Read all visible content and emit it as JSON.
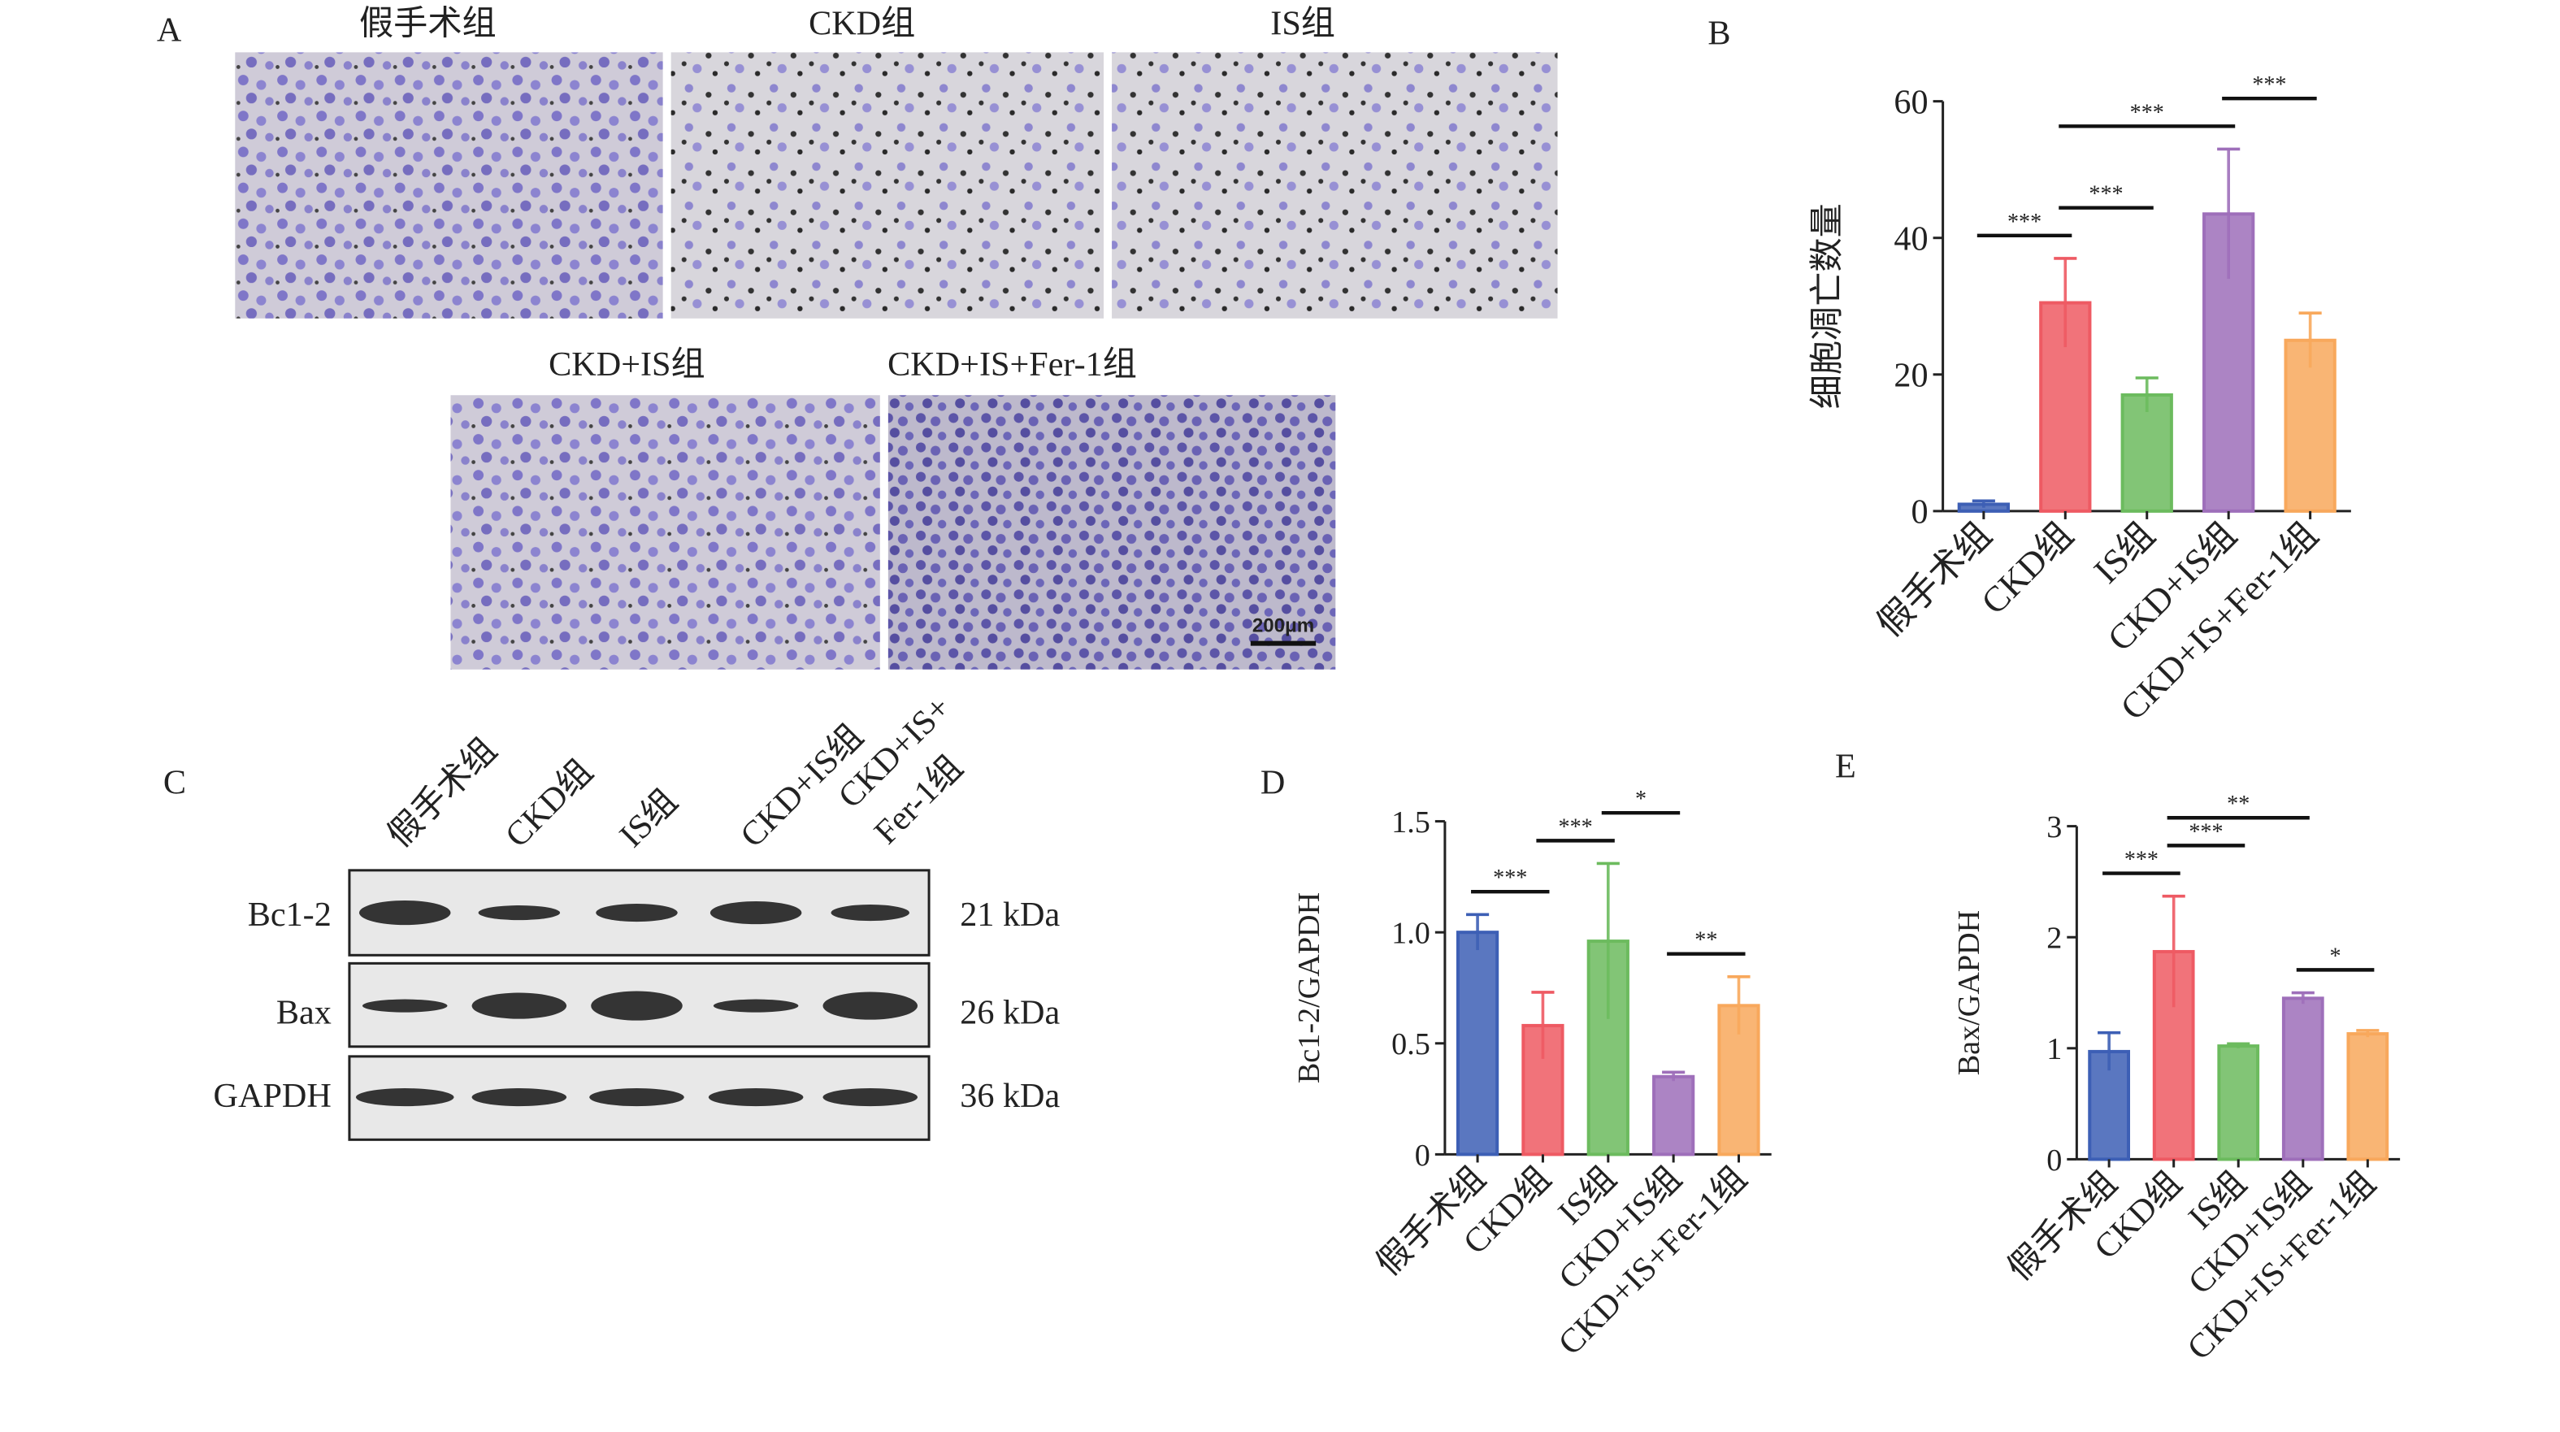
{
  "panel_labels": [
    "A",
    "B",
    "C",
    "D",
    "E"
  ],
  "micrographs": [
    {
      "title": "假手术组"
    },
    {
      "title": "CKD组"
    },
    {
      "title": "IS组"
    },
    {
      "title": "CKD+IS组"
    },
    {
      "title": "CKD+IS+Fer-1组",
      "scale_bar": "200μm"
    }
  ],
  "western_blot": {
    "lanes": [
      [
        "假手术组"
      ],
      [
        "CKD组"
      ],
      [
        "IS组"
      ],
      [
        "CKD+IS组"
      ],
      [
        "CKD+IS+",
        "Fer-1组"
      ]
    ],
    "rows": [
      {
        "protein": "Bc1-2",
        "size": "21 kDa"
      },
      {
        "protein": "Bax",
        "size": "26 kDa"
      },
      {
        "protein": "GAPDH",
        "size": "36 kDa"
      }
    ]
  },
  "chart_data": [
    {
      "type": "bar",
      "ylabel": "细胞凋亡数量",
      "categories": [
        "假手术组",
        "CKD组",
        "IS组",
        "CKD+IS组",
        "CKD+IS+Fer-1组"
      ],
      "values": [
        1,
        30.5,
        17,
        43.5,
        25
      ],
      "errors": [
        0.5,
        6.5,
        2.5,
        9.5,
        4
      ],
      "colors": [
        "#3d5fb5",
        "#ee5a63",
        "#6cbb5e",
        "#9e6fba",
        "#f8a85c"
      ],
      "ylim": [
        0,
        60
      ],
      "yticks": [
        0,
        20,
        40,
        60
      ],
      "comparisons": [
        {
          "pair": [
            0,
            1
          ],
          "label": "***"
        },
        {
          "pair": [
            1,
            2
          ],
          "label": "***"
        },
        {
          "pair": [
            1,
            3
          ],
          "label": "***"
        },
        {
          "pair": [
            3,
            4
          ],
          "label": "***"
        }
      ]
    },
    {
      "type": "bar",
      "ylabel": "Bc1-2/GAPDH",
      "categories": [
        "假手术组",
        "CKD组",
        "IS组",
        "CKD+IS组",
        "CKD+IS+Fer-1组"
      ],
      "values": [
        1.0,
        0.58,
        0.96,
        0.35,
        0.67
      ],
      "errors": [
        0.08,
        0.15,
        0.35,
        0.02,
        0.13
      ],
      "colors": [
        "#3d5fb5",
        "#ee5a63",
        "#6cbb5e",
        "#9e6fba",
        "#f8a85c"
      ],
      "ylim": [
        0,
        1.5
      ],
      "yticks": [
        0,
        0.5,
        {
          "value": 1,
          "label": "1.0"
        },
        1.5
      ],
      "comparisons": [
        {
          "pair": [
            0,
            1
          ],
          "label": "***"
        },
        {
          "pair": [
            1,
            2
          ],
          "label": "***"
        },
        {
          "pair": [
            2,
            3
          ],
          "label": "*"
        },
        {
          "pair": [
            3,
            4
          ],
          "label": "**"
        }
      ]
    },
    {
      "type": "bar",
      "ylabel": "Bax/GAPDH",
      "categories": [
        "假手术组",
        "CKD组",
        "IS组",
        "CKD+IS组",
        "CKD+IS+Fer-1组"
      ],
      "values": [
        0.97,
        1.87,
        1.02,
        1.45,
        1.13
      ],
      "errors": [
        0.17,
        0.5,
        0.02,
        0.05,
        0.03
      ],
      "colors": [
        "#3d5fb5",
        "#ee5a63",
        "#6cbb5e",
        "#9e6fba",
        "#f8a85c"
      ],
      "ylim": [
        0,
        3
      ],
      "yticks": [
        0,
        1,
        2,
        3
      ],
      "comparisons": [
        {
          "pair": [
            0,
            1
          ],
          "label": "***"
        },
        {
          "pair": [
            1,
            2
          ],
          "label": "***"
        },
        {
          "pair": [
            1,
            3
          ],
          "label": "**"
        },
        {
          "pair": [
            3,
            4
          ],
          "label": "*"
        }
      ]
    }
  ]
}
